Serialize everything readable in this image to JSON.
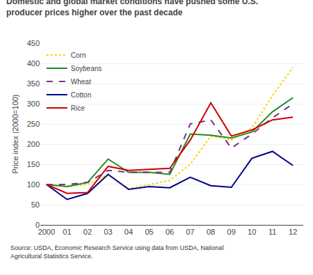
{
  "chart_data": {
    "type": "line",
    "title": "Domestic and global market conditions have pushed some U.S. producer prices higher\nover the past decade",
    "y_label": "Price index (2000=100)",
    "annotations": [
      "Source: USDA, Economic Research Service using data from USDA, National Agricultural\nStatistics Service."
    ],
    "x": [
      2000,
      2001,
      2002,
      2003,
      2004,
      2005,
      2006,
      2007,
      2008,
      2009,
      2010,
      2011,
      2012
    ],
    "xlim": [
      1999.7,
      2012.5
    ],
    "xticks": [
      2000,
      {
        "value": 2001,
        "label": "01"
      },
      {
        "value": 2002,
        "label": "02"
      },
      {
        "value": 2003,
        "label": "03"
      },
      {
        "value": 2004,
        "label": "04"
      },
      {
        "value": 2005,
        "label": "05"
      },
      {
        "value": 2006,
        "label": "06"
      },
      {
        "value": 2007,
        "label": "07"
      },
      {
        "value": 2008,
        "label": "08"
      },
      {
        "value": 2009,
        "label": "09"
      },
      {
        "value": 2010,
        "label": "10"
      },
      {
        "value": 2011,
        "label": "11"
      },
      {
        "value": 2012,
        "label": "12"
      }
    ],
    "ylim": [
      0,
      450
    ],
    "yticks": [
      0,
      50,
      100,
      150,
      200,
      250,
      300,
      350,
      400,
      450
    ],
    "grid": true,
    "legend": "upper left",
    "series": [
      {
        "name": "Corn",
        "color": "#f0d800",
        "line_style": "dotted",
        "values": [
          100,
          95,
          100,
          125,
          90,
          100,
          110,
          150,
          220,
          210,
          240,
          320,
          390
        ]
      },
      {
        "name": "Soybeans",
        "color": "#228B22",
        "line_style": "solid",
        "values": [
          100,
          95,
          105,
          163,
          130,
          130,
          125,
          225,
          222,
          215,
          230,
          280,
          315
        ]
      },
      {
        "name": "Wheat",
        "color": "#7B2D8B",
        "line_style": "dashed",
        "values": [
          100,
          100,
          105,
          135,
          130,
          130,
          130,
          250,
          260,
          190,
          225,
          265,
          300
        ]
      },
      {
        "name": "Cotton",
        "color": "#00008B",
        "line_style": "solid",
        "values": [
          100,
          63,
          78,
          125,
          88,
          95,
          92,
          118,
          97,
          93,
          165,
          182,
          147
        ]
      },
      {
        "name": "Rice",
        "color": "#CC0000",
        "line_style": "solid",
        "values": [
          100,
          78,
          80,
          145,
          135,
          138,
          140,
          210,
          302,
          220,
          235,
          260,
          267
        ]
      }
    ]
  }
}
